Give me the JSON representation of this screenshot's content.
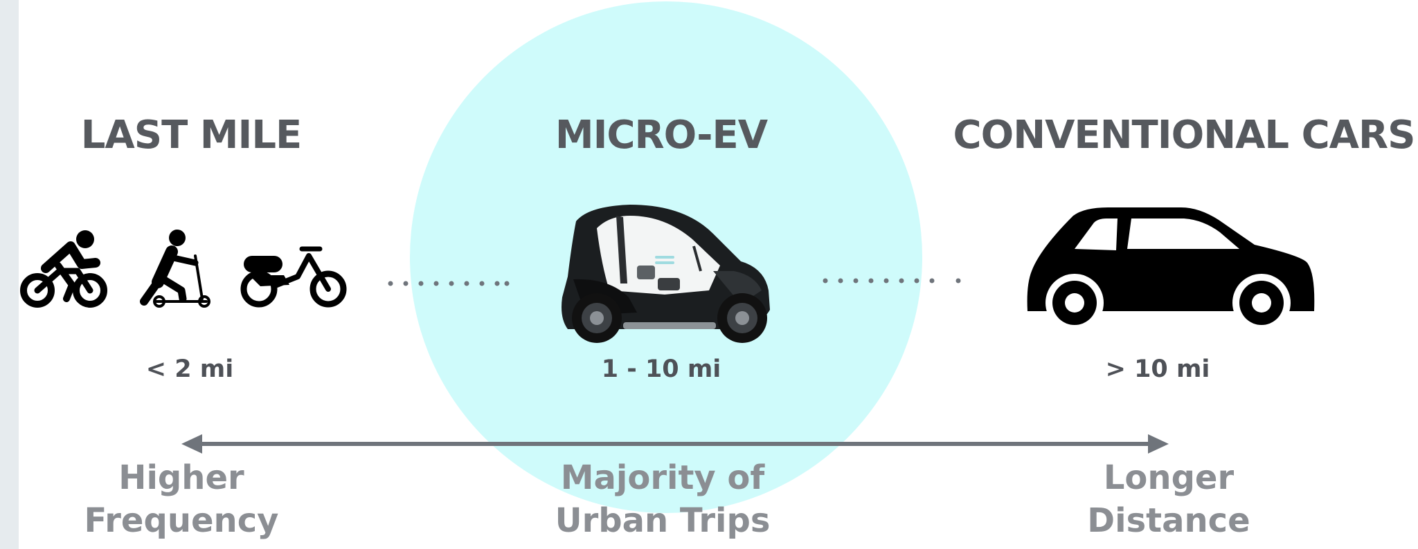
{
  "categories": [
    {
      "heading": "LAST MILE",
      "distance": "< 2 mi",
      "icons": [
        "bicycle-rider-icon",
        "kick-scooter-rider-icon",
        "e-moped-icon"
      ]
    },
    {
      "heading": "MICRO-EV",
      "distance": "1 - 10 mi",
      "icons": [
        "micro-ev-car-icon"
      ]
    },
    {
      "heading": "CONVENTIONAL CARS",
      "distance": "> 10 mi",
      "icons": [
        "car-icon"
      ]
    }
  ],
  "axis": {
    "left": {
      "line1": "Higher",
      "line2": "Frequency"
    },
    "center": {
      "line1": "Majority of",
      "line2": "Urban Trips"
    },
    "right": {
      "line1": "Longer",
      "line2": "Distance"
    }
  },
  "colors": {
    "highlight": "#cffbfb",
    "heading": "#56595e",
    "distance": "#4e5157",
    "axis_text": "#8b8e93",
    "arrow": "#6f747b",
    "icon": "#000000",
    "connector_dots": "#6f747b"
  }
}
